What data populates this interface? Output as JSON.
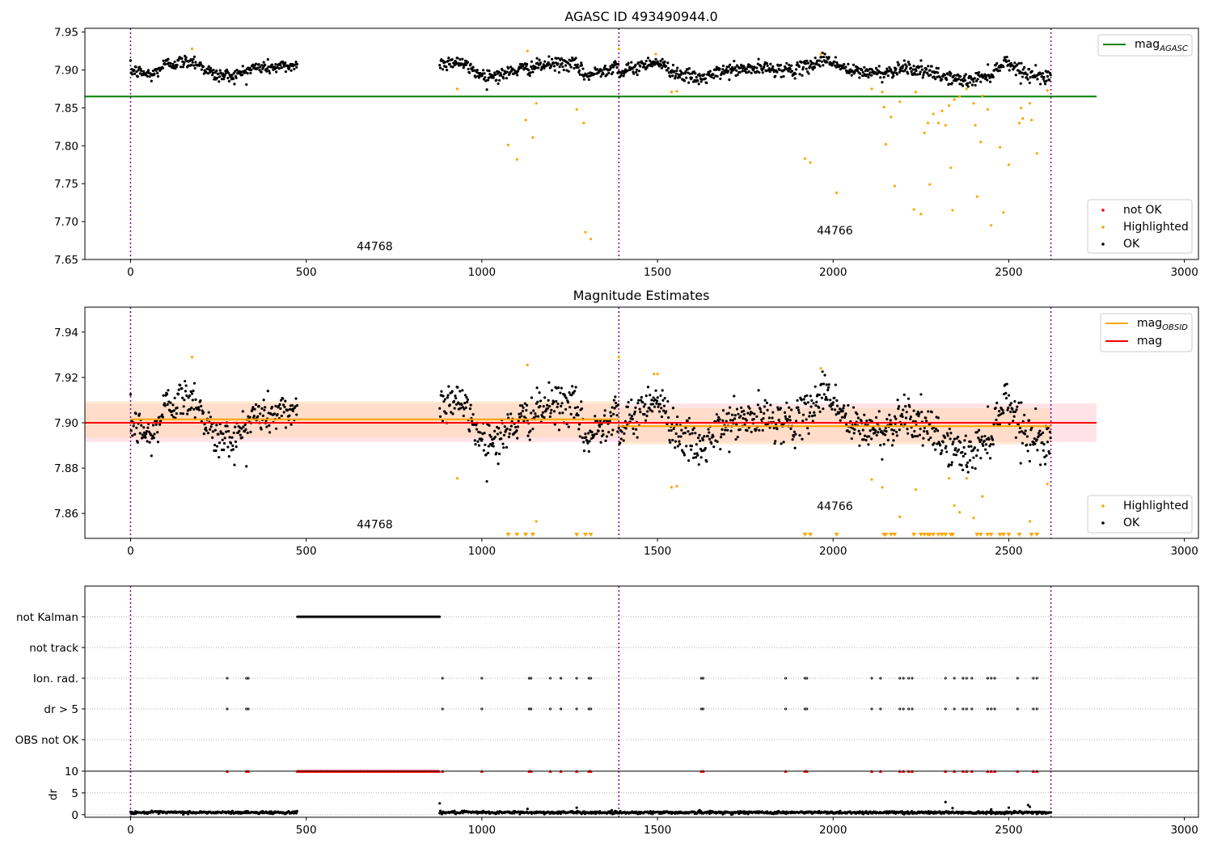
{
  "figure_title": "AGASC ID 493490944.0",
  "colors": {
    "ok": "#000000",
    "highlighted": "#ffa500",
    "not_ok": "#ff0000",
    "mag_agasc": "#008000",
    "mag_obsid": "#ffa500",
    "mag": "#ff0000",
    "obs_boundary": "#800080",
    "band_mag": "#ffc0cb",
    "band_obsid": "#ffd8b0",
    "grid": "#b0b0b0"
  },
  "obsids": [
    {
      "label": "44768",
      "start": 0,
      "end": 1390
    },
    {
      "label": "44766",
      "start": 1390,
      "end": 2620
    }
  ],
  "boundaries": [
    0,
    1390,
    2620
  ],
  "chart_data": [
    {
      "type": "scatter",
      "title": "AGASC ID 493490944.0",
      "xlabel": "",
      "ylabel": "",
      "xlim": [
        -130,
        3040
      ],
      "ylim": [
        7.65,
        7.955
      ],
      "xticks": [
        0,
        500,
        1000,
        1500,
        2000,
        2500,
        3000
      ],
      "yticks": [
        7.65,
        7.7,
        7.75,
        7.8,
        7.85,
        7.9,
        7.95
      ],
      "ytick_labels": [
        "7.65",
        "7.70",
        "7.75",
        "7.80",
        "7.85",
        "7.90",
        "7.95"
      ],
      "hlines": [
        {
          "name": "mag_AGASC",
          "y": 7.865,
          "x0": -130,
          "x1": 2750
        }
      ],
      "legend_top": {
        "placement": "top-right",
        "entries": [
          {
            "main": "mag",
            "sub": "AGASC"
          }
        ]
      },
      "legend_bottom": {
        "placement": "bottom-right",
        "entries": [
          "not OK",
          "Highlighted",
          "OK"
        ]
      },
      "annotations": [
        {
          "text": "44768",
          "x": 695,
          "y": 7.662
        },
        {
          "text": "44766",
          "x": 2005,
          "y": 7.683
        }
      ],
      "ok_segments": [
        {
          "x0": 0,
          "x1": 475,
          "waypoints": [
            [
              0,
              7.9
            ],
            [
              60,
              7.893
            ],
            [
              100,
              7.908
            ],
            [
              180,
              7.912
            ],
            [
              240,
              7.893
            ],
            [
              300,
              7.893
            ],
            [
              350,
              7.903
            ],
            [
              420,
              7.904
            ],
            [
              475,
              7.906
            ]
          ]
        },
        {
          "x0": 880,
          "x1": 1390,
          "waypoints": [
            [
              880,
              7.908
            ],
            [
              930,
              7.912
            ],
            [
              1000,
              7.893
            ],
            [
              1050,
              7.893
            ],
            [
              1100,
              7.9
            ],
            [
              1200,
              7.908
            ],
            [
              1260,
              7.908
            ],
            [
              1300,
              7.892
            ],
            [
              1390,
              7.908
            ]
          ]
        },
        {
          "x0": 1390,
          "x1": 2620,
          "waypoints": [
            [
              1390,
              7.895
            ],
            [
              1490,
              7.912
            ],
            [
              1560,
              7.895
            ],
            [
              1620,
              7.888
            ],
            [
              1700,
              7.9
            ],
            [
              1800,
              7.902
            ],
            [
              1900,
              7.9
            ],
            [
              1980,
              7.915
            ],
            [
              2050,
              7.898
            ],
            [
              2150,
              7.896
            ],
            [
              2200,
              7.905
            ],
            [
              2300,
              7.893
            ],
            [
              2380,
              7.885
            ],
            [
              2450,
              7.895
            ],
            [
              2490,
              7.912
            ],
            [
              2550,
              7.895
            ],
            [
              2620,
              7.89
            ]
          ]
        }
      ],
      "ok_noise": 0.006,
      "highlighted": [
        [
          175,
          7.928
        ],
        [
          930,
          7.875
        ],
        [
          1075,
          7.801
        ],
        [
          1100,
          7.782
        ],
        [
          1125,
          7.834
        ],
        [
          1130,
          7.925
        ],
        [
          1145,
          7.811
        ],
        [
          1155,
          7.856
        ],
        [
          1270,
          7.848
        ],
        [
          1290,
          7.83
        ],
        [
          1295,
          7.686
        ],
        [
          1310,
          7.677
        ],
        [
          1390,
          7.928
        ],
        [
          1495,
          7.921
        ],
        [
          1540,
          7.871
        ],
        [
          1555,
          7.872
        ],
        [
          1920,
          7.783
        ],
        [
          1935,
          7.778
        ],
        [
          1965,
          7.921
        ],
        [
          2010,
          7.738
        ],
        [
          2110,
          7.875
        ],
        [
          2140,
          7.871
        ],
        [
          2145,
          7.851
        ],
        [
          2150,
          7.802
        ],
        [
          2165,
          7.838
        ],
        [
          2175,
          7.747
        ],
        [
          2190,
          7.858
        ],
        [
          2230,
          7.716
        ],
        [
          2235,
          7.871
        ],
        [
          2250,
          7.71
        ],
        [
          2260,
          7.817
        ],
        [
          2270,
          7.83
        ],
        [
          2275,
          7.749
        ],
        [
          2285,
          7.842
        ],
        [
          2300,
          7.83
        ],
        [
          2310,
          7.846
        ],
        [
          2320,
          7.827
        ],
        [
          2330,
          7.853
        ],
        [
          2335,
          7.771
        ],
        [
          2340,
          7.715
        ],
        [
          2345,
          7.861
        ],
        [
          2360,
          7.865
        ],
        [
          2380,
          7.875
        ],
        [
          2400,
          7.856
        ],
        [
          2405,
          7.827
        ],
        [
          2410,
          7.733
        ],
        [
          2420,
          7.805
        ],
        [
          2425,
          7.866
        ],
        [
          2440,
          7.848
        ],
        [
          2450,
          7.695
        ],
        [
          2475,
          7.798
        ],
        [
          2485,
          7.712
        ],
        [
          2500,
          7.775
        ],
        [
          2530,
          7.83
        ],
        [
          2535,
          7.85
        ],
        [
          2540,
          7.836
        ],
        [
          2560,
          7.856
        ],
        [
          2565,
          7.834
        ],
        [
          2580,
          7.79
        ],
        [
          2610,
          7.873
        ]
      ]
    },
    {
      "type": "scatter",
      "title": "Magnitude Estimates",
      "xlabel": "",
      "ylabel": "",
      "xlim": [
        -130,
        3040
      ],
      "ylim": [
        7.849,
        7.951
      ],
      "xticks": [
        0,
        500,
        1000,
        1500,
        2000,
        2500,
        3000
      ],
      "yticks": [
        7.86,
        7.88,
        7.9,
        7.92,
        7.94
      ],
      "ytick_labels": [
        "7.86",
        "7.88",
        "7.90",
        "7.92",
        "7.94"
      ],
      "mag": {
        "value": 7.9,
        "band": [
          7.8915,
          7.9085
        ],
        "x0": -130,
        "x1": 2750
      },
      "mag_obsid": [
        {
          "x0": -130,
          "x1": 1390,
          "value": 7.9015,
          "band": [
            7.8935,
            7.9095
          ]
        },
        {
          "x0": 1390,
          "x1": 2620,
          "value": 7.8985,
          "band": [
            7.8905,
            7.9065
          ]
        }
      ],
      "legend_top": {
        "placement": "top-right",
        "entries": [
          {
            "main": "mag",
            "sub": "OBSID"
          },
          {
            "main": "mag",
            "sub": ""
          }
        ]
      },
      "legend_bottom": {
        "placement": "bottom-right",
        "entries": [
          "Highlighted",
          "OK"
        ]
      },
      "annotations": [
        {
          "text": "44768",
          "x": 695,
          "y": 7.8535
        },
        {
          "text": "44766",
          "x": 2005,
          "y": 7.8615
        }
      ],
      "ok_noise": 0.006,
      "highlighted_in_range": [
        [
          175,
          7.929
        ],
        [
          930,
          7.8755
        ],
        [
          1130,
          7.9255
        ],
        [
          1155,
          7.8565
        ],
        [
          1390,
          7.929
        ],
        [
          1490,
          7.9215
        ],
        [
          1500,
          7.9215
        ],
        [
          1540,
          7.8715
        ],
        [
          1555,
          7.872
        ],
        [
          1965,
          7.924
        ],
        [
          2110,
          7.875
        ],
        [
          2140,
          7.8715
        ],
        [
          2190,
          7.8585
        ],
        [
          2235,
          7.8705
        ],
        [
          2330,
          7.8755
        ],
        [
          2345,
          7.8635
        ],
        [
          2360,
          7.8605
        ],
        [
          2380,
          7.8755
        ],
        [
          2400,
          7.858
        ],
        [
          2425,
          7.8675
        ],
        [
          2560,
          7.8565
        ],
        [
          2610,
          7.873
        ]
      ],
      "highlighted_below_range_x": [
        1075,
        1100,
        1125,
        1145,
        1270,
        1295,
        1310,
        1920,
        1935,
        2010,
        2145,
        2150,
        2165,
        2175,
        2230,
        2250,
        2260,
        2270,
        2275,
        2285,
        2300,
        2310,
        2320,
        2335,
        2340,
        2410,
        2420,
        2440,
        2450,
        2475,
        2485,
        2500,
        2530,
        2565,
        2580
      ]
    },
    {
      "type": "scatter",
      "title": "",
      "xlabel": "",
      "ylabel": "",
      "xlim": [
        -130,
        3040
      ],
      "categories": [
        "not Kalman",
        "not track",
        "Ion. rad.",
        "dr > 5",
        "OBS not OK"
      ],
      "not_kalman_range": [
        475,
        880
      ],
      "flag_x": [
        275,
        330,
        335,
        888,
        1000,
        1135,
        1140,
        1195,
        1225,
        1270,
        1305,
        1310,
        1625,
        1630,
        1865,
        1920,
        1925,
        2110,
        2135,
        2190,
        2200,
        2215,
        2225,
        2320,
        2345,
        2370,
        2380,
        2395,
        2440,
        2450,
        2460,
        2525,
        2570,
        2580
      ]
    },
    {
      "type": "scatter",
      "title": "",
      "xlabel": "",
      "ylabel": "dr",
      "xlim": [
        -130,
        3040
      ],
      "ylim": [
        -0.6,
        10
      ],
      "xticks": [
        0,
        500,
        1000,
        1500,
        2000,
        2500,
        3000
      ],
      "yticks": [
        0,
        5,
        10
      ],
      "ytick_labels": [
        "0",
        "5",
        "10"
      ],
      "clipped_value": 10,
      "dr_typical": 0.5,
      "dr_outliers": [
        [
          880,
          2.6
        ],
        [
          1130,
          1.3
        ],
        [
          1270,
          1.6
        ],
        [
          2320,
          2.9
        ],
        [
          2340,
          1.5
        ],
        [
          2500,
          1.6
        ],
        [
          2555,
          2.2
        ],
        [
          2560,
          1.8
        ],
        [
          2450,
          1.2
        ],
        [
          1620,
          1.0
        ]
      ]
    }
  ]
}
